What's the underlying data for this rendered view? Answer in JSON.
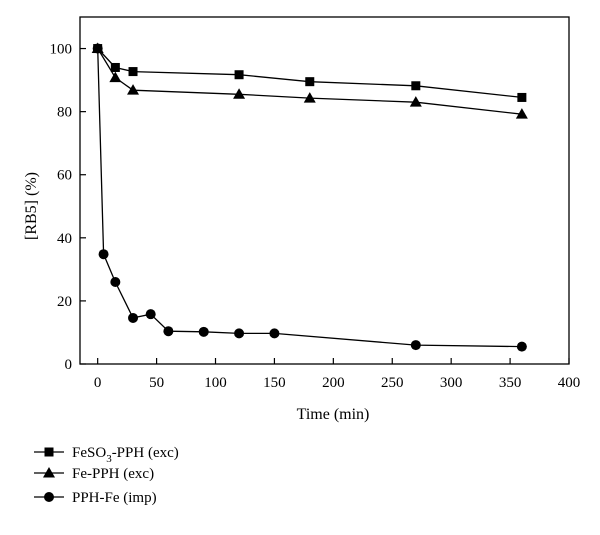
{
  "chart_data": {
    "type": "line",
    "xlabel": "Time (min)",
    "ylabel": "[RB5] (%)",
    "xlim": [
      -15,
      400
    ],
    "ylim": [
      0,
      110
    ],
    "xticks": [
      0,
      50,
      100,
      150,
      200,
      250,
      300,
      350,
      400
    ],
    "yticks": [
      0,
      20,
      40,
      60,
      80,
      100
    ],
    "grid": false,
    "legend_position": "below",
    "series": [
      {
        "name": "FeSO3-PPH (exc)",
        "name_parts": [
          "FeSO",
          "3",
          "-PPH (exc)"
        ],
        "marker": "square",
        "x": [
          0,
          15,
          30,
          120,
          180,
          270,
          360
        ],
        "y": [
          100,
          94,
          92.7,
          91.7,
          89.5,
          88.2,
          84.5
        ]
      },
      {
        "name": "Fe-PPH (exc)",
        "marker": "triangle",
        "x": [
          0,
          15,
          30,
          120,
          180,
          270,
          360
        ],
        "y": [
          100,
          90.8,
          86.8,
          85.5,
          84.3,
          83,
          79.2
        ]
      },
      {
        "name": "PPH-Fe (imp)",
        "marker": "circle",
        "x": [
          0,
          5,
          15,
          30,
          45,
          60,
          90,
          120,
          150,
          270,
          360
        ],
        "y": [
          100,
          34.8,
          26,
          14.6,
          15.8,
          10.4,
          10.2,
          9.7,
          9.7,
          6,
          5.5
        ]
      }
    ]
  }
}
